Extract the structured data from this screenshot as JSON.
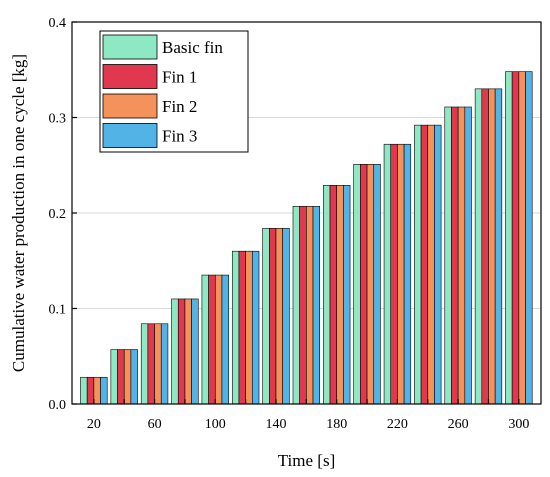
{
  "chart_data": {
    "type": "bar",
    "xlabel": "Time [s]",
    "ylabel": "Cumulative water production in one cycle [kg]",
    "ylim": [
      0,
      0.4
    ],
    "yticks": [
      "0.0",
      "0.1",
      "0.2",
      "0.3",
      "0.4"
    ],
    "categories": [
      20,
      40,
      60,
      80,
      100,
      120,
      140,
      160,
      180,
      200,
      220,
      240,
      260,
      280,
      300
    ],
    "xtick_labels": [
      "20",
      "60",
      "100",
      "140",
      "180",
      "220",
      "260",
      "300"
    ],
    "grid": "horizontal",
    "legend_position": "top-left",
    "series": [
      {
        "name": "Basic fin",
        "color": "#8ee8c3",
        "values": [
          0.028,
          0.057,
          0.084,
          0.11,
          0.135,
          0.16,
          0.184,
          0.207,
          0.229,
          0.251,
          0.272,
          0.292,
          0.311,
          0.33,
          0.348
        ]
      },
      {
        "name": "Fin 1",
        "color": "#e0384e",
        "values": [
          0.028,
          0.057,
          0.084,
          0.11,
          0.135,
          0.16,
          0.184,
          0.207,
          0.229,
          0.251,
          0.272,
          0.292,
          0.311,
          0.33,
          0.348
        ]
      },
      {
        "name": "Fin 2",
        "color": "#f5915a",
        "values": [
          0.028,
          0.057,
          0.084,
          0.11,
          0.135,
          0.16,
          0.184,
          0.207,
          0.229,
          0.251,
          0.272,
          0.292,
          0.311,
          0.33,
          0.348
        ]
      },
      {
        "name": "Fin 3",
        "color": "#52b4e6",
        "values": [
          0.028,
          0.057,
          0.084,
          0.11,
          0.135,
          0.16,
          0.184,
          0.207,
          0.229,
          0.251,
          0.272,
          0.292,
          0.311,
          0.33,
          0.348
        ]
      }
    ]
  }
}
